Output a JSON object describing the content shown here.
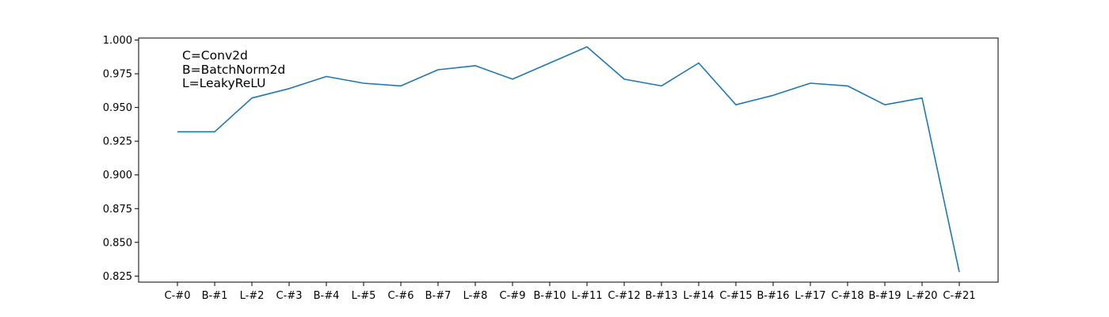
{
  "chart_data": {
    "type": "line",
    "title": "",
    "xlabel": "",
    "ylabel": "",
    "categories": [
      "C-#0",
      "B-#1",
      "L-#2",
      "C-#3",
      "B-#4",
      "L-#5",
      "C-#6",
      "B-#7",
      "L-#8",
      "C-#9",
      "B-#10",
      "L-#11",
      "C-#12",
      "B-#13",
      "L-#14",
      "C-#15",
      "B-#16",
      "L-#17",
      "C-#18",
      "B-#19",
      "L-#20",
      "C-#21"
    ],
    "series": [
      {
        "color": "#1f77b4",
        "values": [
          0.932,
          0.932,
          0.957,
          0.964,
          0.973,
          0.968,
          0.966,
          0.978,
          0.981,
          0.971,
          0.983,
          0.995,
          0.971,
          0.966,
          0.983,
          0.952,
          0.959,
          0.968,
          0.966,
          0.952,
          0.957,
          0.828
        ]
      }
    ],
    "ylim": [
      0.8205,
      1.0015
    ],
    "yticks": [
      "0.825",
      "0.850",
      "0.875",
      "0.900",
      "0.925",
      "0.950",
      "0.975",
      "1.000"
    ],
    "grid": false,
    "legend": "none",
    "annotations": [
      "C=Conv2d",
      "B=BatchNorm2d",
      "L=LeakyReLU"
    ]
  }
}
